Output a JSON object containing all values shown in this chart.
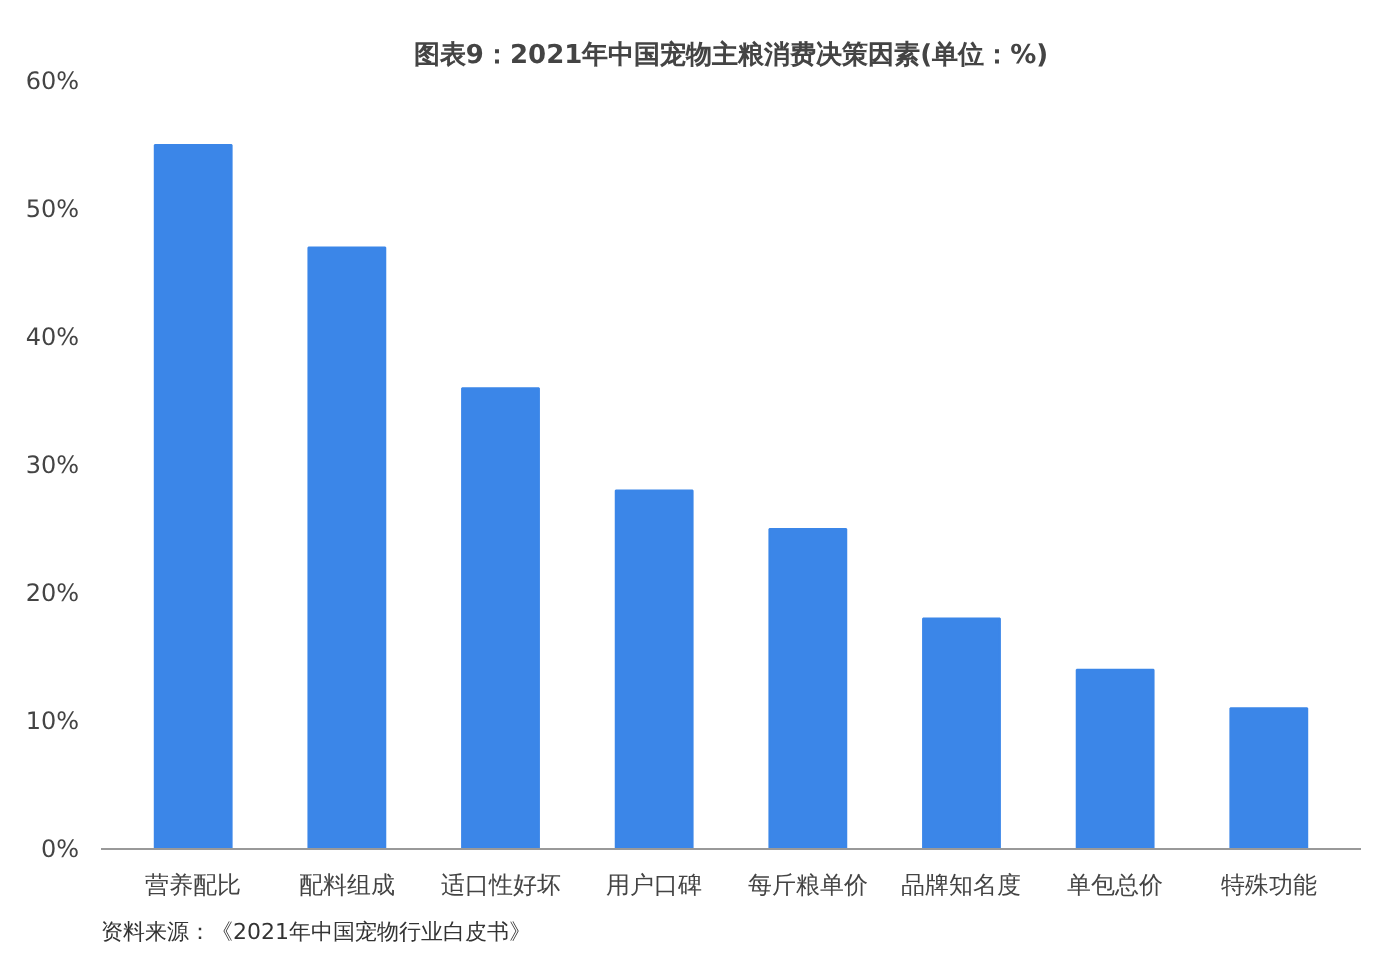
{
  "chart_data": {
    "type": "bar",
    "title": "图表9：2021年中国宠物主粮消费决策因素(单位：%)",
    "categories": [
      "营养配比",
      "配料组成",
      "适口性好坏",
      "用户口碑",
      "每斤粮单价",
      "品牌知名度",
      "单包总价",
      "特殊功能"
    ],
    "values": [
      55,
      47,
      36,
      28,
      25,
      18,
      14,
      11
    ],
    "color": "#3b86e8",
    "ylim": [
      0,
      60
    ],
    "yticks": [
      {
        "value": 0,
        "label": "0%"
      },
      {
        "value": 10,
        "label": "10%"
      },
      {
        "value": 20,
        "label": "20%"
      },
      {
        "value": 30,
        "label": "30%"
      },
      {
        "value": 40,
        "label": "40%"
      },
      {
        "value": 50,
        "label": "50%"
      },
      {
        "value": 60,
        "label": "60%"
      }
    ],
    "grid": false,
    "annotations": [
      "资料来源：《2021年中国宠物行业白皮书》"
    ]
  }
}
